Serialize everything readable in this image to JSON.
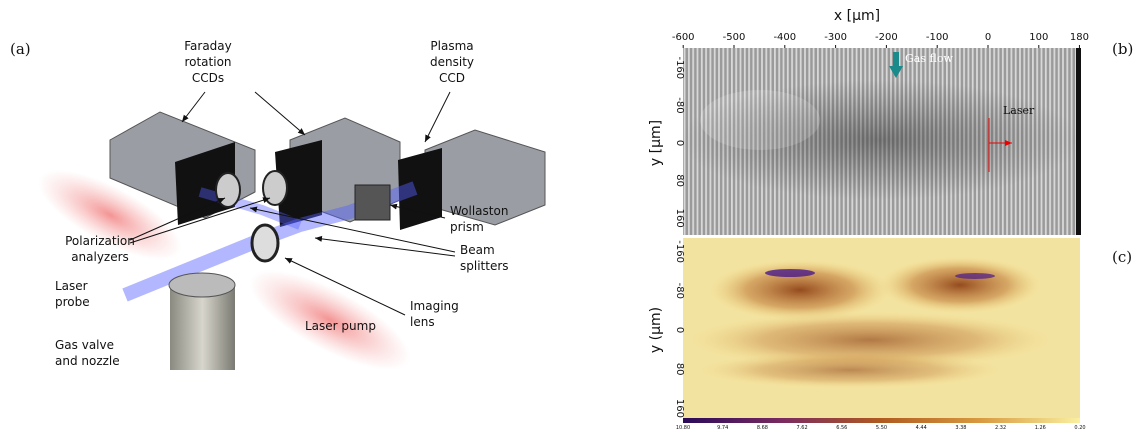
{
  "panel_labels": {
    "a": "(a)",
    "b": "(b)",
    "c": "(c)"
  },
  "setup": {
    "faraday_ccds": [
      "Faraday",
      "rotation",
      "CCDs"
    ],
    "plasma_ccd": [
      "Plasma",
      "density",
      "CCD"
    ],
    "polarization_analyzers": [
      "Polarization",
      "analyzers"
    ],
    "wollaston_prism": [
      "Wollaston",
      "prism"
    ],
    "beam_splitters": [
      "Beam",
      "splitters"
    ],
    "laser_probe": [
      "Laser",
      "probe"
    ],
    "imaging_lens": [
      "Imaging",
      "lens"
    ],
    "laser_pump": [
      "Laser pump"
    ],
    "gas_valve": [
      "Gas valve",
      "and nozzle"
    ]
  },
  "interferogram": {
    "x_label": "x [µm]",
    "x_ticks": [
      "-600",
      "-500",
      "-400",
      "-300",
      "-200",
      "-100",
      "0",
      "100",
      "180"
    ],
    "y_label": "y [µm]",
    "y_ticks": [
      "-160",
      "-80",
      "0",
      "80",
      "160"
    ],
    "gas_flow": "Gas flow",
    "laser": "Laser"
  },
  "density_map": {
    "y_label": "y (µm)",
    "y_ticks": [
      "-160",
      "-80",
      "0",
      "80",
      "160"
    ],
    "colorbar_ticks": [
      "10.80",
      "9.74",
      "8.68",
      "7.62",
      "6.56",
      "5.50",
      "4.44",
      "3.38",
      "2.32",
      "1.26",
      "0.20"
    ]
  }
}
